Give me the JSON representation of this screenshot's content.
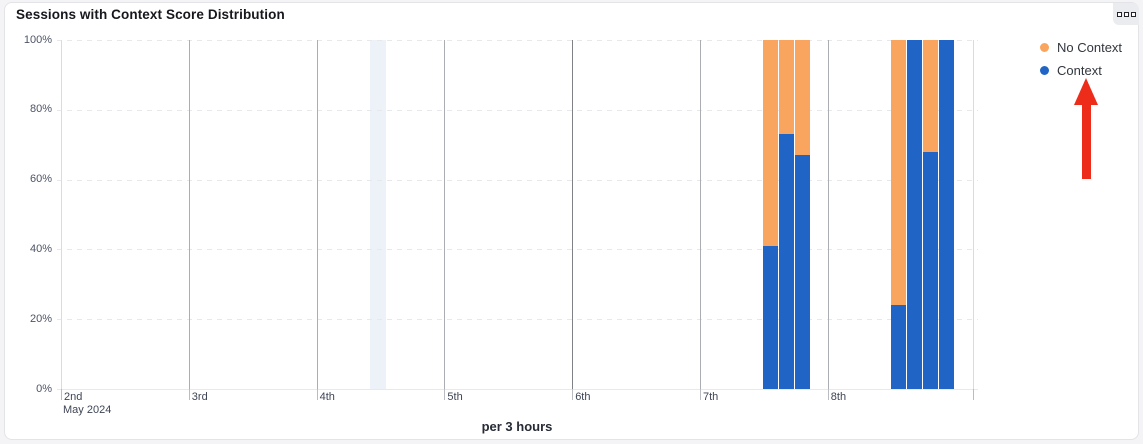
{
  "card": {
    "title": "Sessions with Context Score Distribution",
    "menu_icon": "grid-dots-menu"
  },
  "legend": {
    "items": [
      {
        "label": "No Context",
        "color": "#F9A45F"
      },
      {
        "label": "Context",
        "color": "#2065C5"
      }
    ]
  },
  "annotations": {
    "arrow": {
      "shape": "up-arrow",
      "color": "#ED2C1A",
      "points_to": "Context legend item"
    }
  },
  "chart_data": {
    "type": "bar",
    "stacking": "percent",
    "title": "Sessions with Context Score Distribution",
    "xlabel": "per 3 hours",
    "ylabel": "",
    "ylim": [
      0,
      100
    ],
    "grid": true,
    "legend_position": "top-right",
    "y_tick_labels": [
      "100%",
      "80%",
      "60%",
      "40%",
      "20%",
      "0%"
    ],
    "x_tick_labels": [
      "2nd",
      "3rd",
      "4th",
      "5th",
      "6th",
      "7th",
      "8th"
    ],
    "x_axis_month_label": "May 2024",
    "series": [
      {
        "name": "No Context",
        "color": "#F9A45F"
      },
      {
        "name": "Context",
        "color": "#2065C5"
      }
    ],
    "points": [
      {
        "date": "May 7 2024",
        "day_index": 5,
        "bucket_start_hour": 12,
        "context_pct": 41,
        "no_context_pct": 59
      },
      {
        "date": "May 7 2024",
        "day_index": 5,
        "bucket_start_hour": 15,
        "context_pct": 73,
        "no_context_pct": 27
      },
      {
        "date": "May 7 2024",
        "day_index": 5,
        "bucket_start_hour": 18,
        "context_pct": 67,
        "no_context_pct": 33
      },
      {
        "date": "May 8 2024",
        "day_index": 6,
        "bucket_start_hour": 12,
        "context_pct": 24,
        "no_context_pct": 76
      },
      {
        "date": "May 8 2024",
        "day_index": 6,
        "bucket_start_hour": 15,
        "context_pct": 100,
        "no_context_pct": 0
      },
      {
        "date": "May 8 2024",
        "day_index": 6,
        "bucket_start_hour": 18,
        "context_pct": 68,
        "no_context_pct": 32
      },
      {
        "date": "May 8 2024",
        "day_index": 6,
        "bucket_start_hour": 21,
        "context_pct": 100,
        "no_context_pct": 0
      }
    ],
    "highlight_band": {
      "date": "May 4 2024",
      "day_index": 2,
      "start_hour": 10,
      "end_hour": 13
    }
  }
}
